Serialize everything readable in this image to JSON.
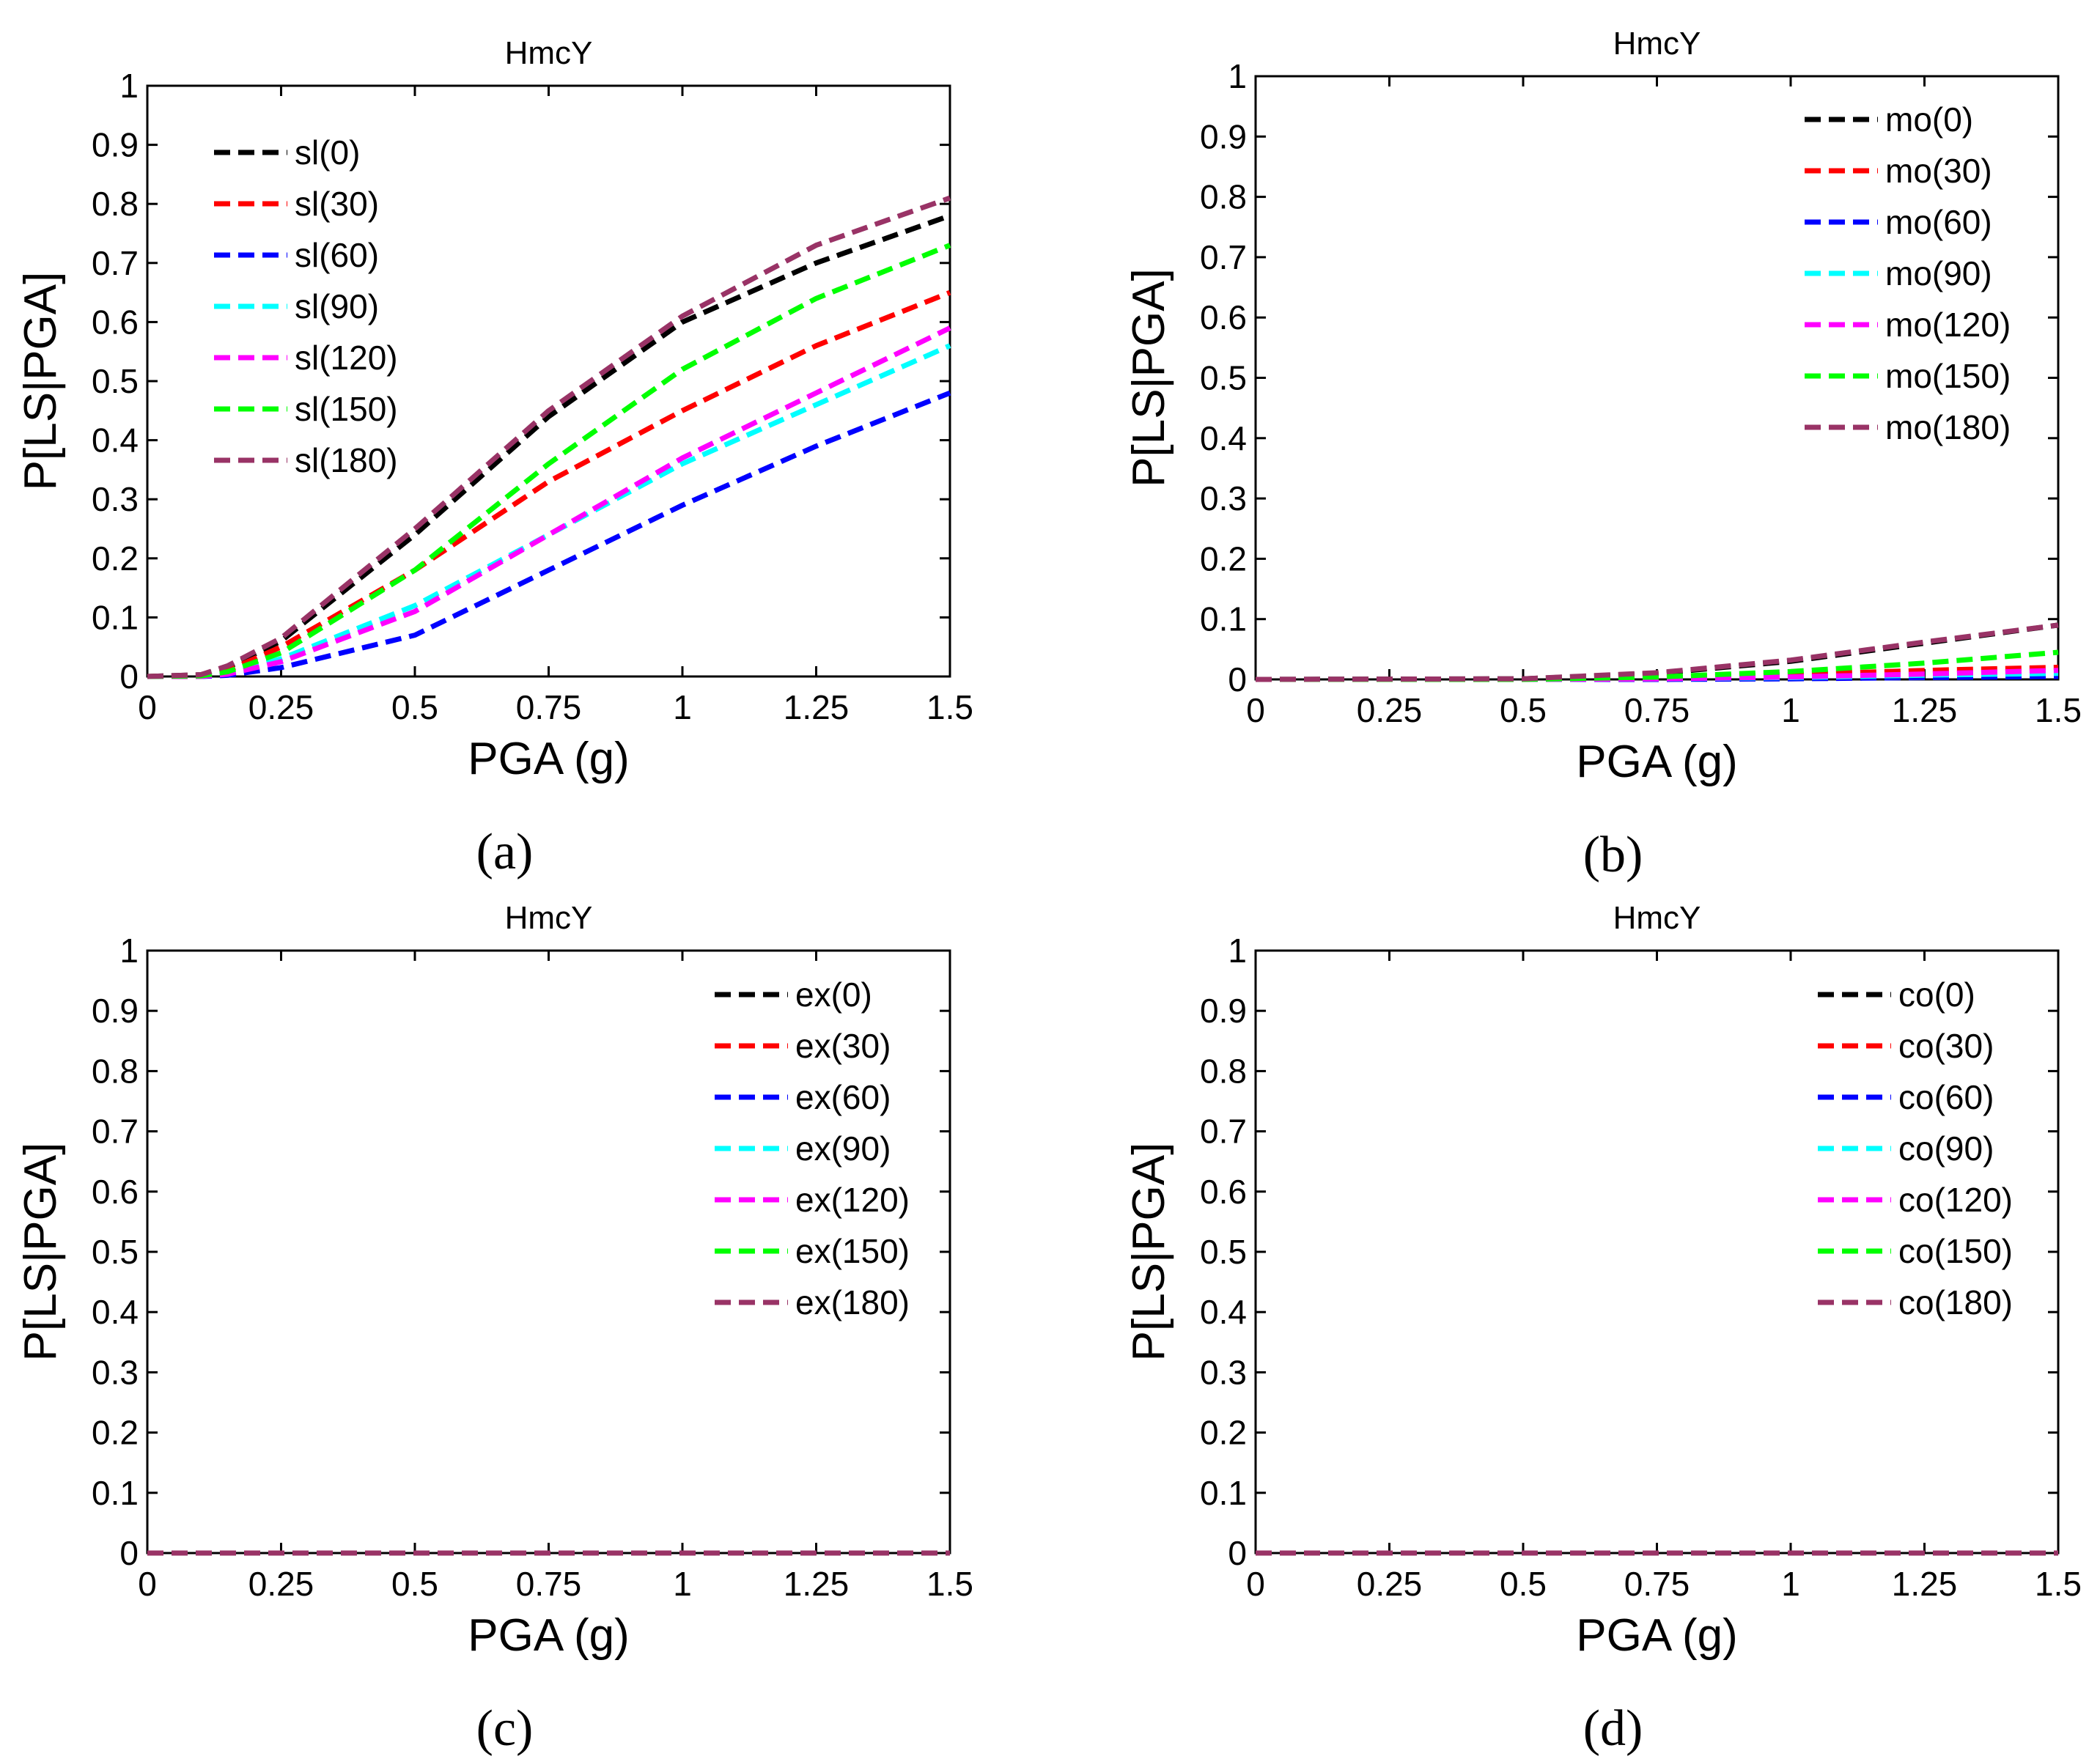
{
  "chart_data": [
    {
      "type": "line",
      "panel_label": "(a)",
      "title": "HmcY",
      "xlabel": "PGA (g)",
      "ylabel": "P[LS|PGA]",
      "xlim": [
        0,
        1.5
      ],
      "ylim": [
        0,
        1
      ],
      "xticks": [
        "0",
        "0.25",
        "0.5",
        "0.75",
        "1",
        "1.25",
        "1.5"
      ],
      "yticks": [
        "0",
        "0.1",
        "0.2",
        "0.3",
        "0.4",
        "0.5",
        "0.6",
        "0.7",
        "0.8",
        "0.9",
        "1"
      ],
      "grid": false,
      "legend_position": "top-left",
      "x": [
        0,
        0.1,
        0.15,
        0.25,
        0.5,
        0.75,
        1,
        1.25,
        1.5
      ],
      "series": [
        {
          "name": "sl(0)",
          "color": "#000000",
          "values": [
            0,
            0.003,
            0.015,
            0.06,
            0.24,
            0.44,
            0.6,
            0.7,
            0.78
          ]
        },
        {
          "name": "sl(30)",
          "color": "#ff0000",
          "values": [
            0,
            0.002,
            0.01,
            0.05,
            0.18,
            0.33,
            0.45,
            0.56,
            0.65
          ]
        },
        {
          "name": "sl(60)",
          "color": "#0000ff",
          "values": [
            0,
            0.0,
            0.002,
            0.015,
            0.07,
            0.18,
            0.29,
            0.39,
            0.48
          ]
        },
        {
          "name": "sl(90)",
          "color": "#00ffff",
          "values": [
            0,
            0.0,
            0.005,
            0.03,
            0.12,
            0.24,
            0.36,
            0.46,
            0.56
          ]
        },
        {
          "name": "sl(120)",
          "color": "#ff00ff",
          "values": [
            0,
            0.0,
            0.004,
            0.025,
            0.11,
            0.24,
            0.37,
            0.48,
            0.59
          ]
        },
        {
          "name": "sl(150)",
          "color": "#00ff00",
          "values": [
            0,
            0.001,
            0.008,
            0.04,
            0.18,
            0.36,
            0.52,
            0.64,
            0.73
          ]
        },
        {
          "name": "sl(180)",
          "color": "#993366",
          "values": [
            0,
            0.003,
            0.018,
            0.065,
            0.25,
            0.45,
            0.61,
            0.73,
            0.81
          ]
        }
      ]
    },
    {
      "type": "line",
      "panel_label": "(b)",
      "title": "HmcY",
      "xlabel": "PGA (g)",
      "ylabel": "P[LS|PGA]",
      "xlim": [
        0,
        1.5
      ],
      "ylim": [
        0,
        1
      ],
      "xticks": [
        "0",
        "0.25",
        "0.5",
        "0.75",
        "1",
        "1.25",
        "1.5"
      ],
      "yticks": [
        "0",
        "0.1",
        "0.2",
        "0.3",
        "0.4",
        "0.5",
        "0.6",
        "0.7",
        "0.8",
        "0.9",
        "1"
      ],
      "grid": false,
      "legend_position": "top-right",
      "x": [
        0,
        0.5,
        0.75,
        1,
        1.25,
        1.5
      ],
      "series": [
        {
          "name": "mo(0)",
          "color": "#000000",
          "values": [
            0,
            0.001,
            0.01,
            0.03,
            0.06,
            0.09
          ]
        },
        {
          "name": "mo(30)",
          "color": "#ff0000",
          "values": [
            0,
            0.0,
            0.003,
            0.008,
            0.015,
            0.02
          ]
        },
        {
          "name": "mo(60)",
          "color": "#0000ff",
          "values": [
            0,
            0.0,
            0.0,
            0.001,
            0.003,
            0.005
          ]
        },
        {
          "name": "mo(90)",
          "color": "#00ffff",
          "values": [
            0,
            0.0,
            0.001,
            0.003,
            0.007,
            0.01
          ]
        },
        {
          "name": "mo(120)",
          "color": "#ff00ff",
          "values": [
            0,
            0.0,
            0.001,
            0.004,
            0.009,
            0.015
          ]
        },
        {
          "name": "mo(150)",
          "color": "#00ff00",
          "values": [
            0,
            0.0,
            0.004,
            0.013,
            0.027,
            0.045
          ]
        },
        {
          "name": "mo(180)",
          "color": "#993366",
          "values": [
            0,
            0.001,
            0.011,
            0.032,
            0.062,
            0.09
          ]
        }
      ]
    },
    {
      "type": "line",
      "panel_label": "(c)",
      "title": "HmcY",
      "xlabel": "PGA (g)",
      "ylabel": "P[LS|PGA]",
      "xlim": [
        0,
        1.5
      ],
      "ylim": [
        0,
        1
      ],
      "xticks": [
        "0",
        "0.25",
        "0.5",
        "0.75",
        "1",
        "1.25",
        "1.5"
      ],
      "yticks": [
        "0",
        "0.1",
        "0.2",
        "0.3",
        "0.4",
        "0.5",
        "0.6",
        "0.7",
        "0.8",
        "0.9",
        "1"
      ],
      "grid": false,
      "legend_position": "top-right",
      "x": [
        0,
        0.5,
        1,
        1.5
      ],
      "series": [
        {
          "name": "ex(0)",
          "color": "#000000",
          "values": [
            0,
            0,
            0,
            0
          ]
        },
        {
          "name": "ex(30)",
          "color": "#ff0000",
          "values": [
            0,
            0,
            0,
            0
          ]
        },
        {
          "name": "ex(60)",
          "color": "#0000ff",
          "values": [
            0,
            0,
            0,
            0
          ]
        },
        {
          "name": "ex(90)",
          "color": "#00ffff",
          "values": [
            0,
            0,
            0,
            0
          ]
        },
        {
          "name": "ex(120)",
          "color": "#ff00ff",
          "values": [
            0,
            0,
            0,
            0
          ]
        },
        {
          "name": "ex(150)",
          "color": "#00ff00",
          "values": [
            0,
            0,
            0,
            0
          ]
        },
        {
          "name": "ex(180)",
          "color": "#993366",
          "values": [
            0,
            0,
            0,
            0
          ]
        }
      ]
    },
    {
      "type": "line",
      "panel_label": "(d)",
      "title": "HmcY",
      "xlabel": "PGA (g)",
      "ylabel": "P[LS|PGA]",
      "xlim": [
        0,
        1.5
      ],
      "ylim": [
        0,
        1
      ],
      "xticks": [
        "0",
        "0.25",
        "0.5",
        "0.75",
        "1",
        "1.25",
        "1.5"
      ],
      "yticks": [
        "0",
        "0.1",
        "0.2",
        "0.3",
        "0.4",
        "0.5",
        "0.6",
        "0.7",
        "0.8",
        "0.9",
        "1"
      ],
      "grid": false,
      "legend_position": "top-right",
      "x": [
        0,
        0.5,
        1,
        1.5
      ],
      "series": [
        {
          "name": "co(0)",
          "color": "#000000",
          "values": [
            0,
            0,
            0,
            0
          ]
        },
        {
          "name": "co(30)",
          "color": "#ff0000",
          "values": [
            0,
            0,
            0,
            0
          ]
        },
        {
          "name": "co(60)",
          "color": "#0000ff",
          "values": [
            0,
            0,
            0,
            0
          ]
        },
        {
          "name": "co(90)",
          "color": "#00ffff",
          "values": [
            0,
            0,
            0,
            0
          ]
        },
        {
          "name": "co(120)",
          "color": "#ff00ff",
          "values": [
            0,
            0,
            0,
            0
          ]
        },
        {
          "name": "co(150)",
          "color": "#00ff00",
          "values": [
            0,
            0,
            0,
            0
          ]
        },
        {
          "name": "co(180)",
          "color": "#993366",
          "values": [
            0,
            0,
            0,
            0
          ]
        }
      ]
    }
  ]
}
